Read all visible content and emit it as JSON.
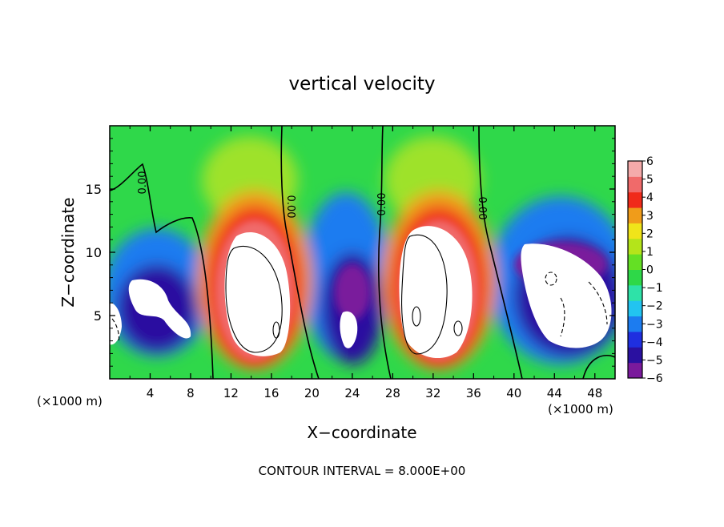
{
  "chart_data": {
    "type": "heatmap",
    "title": "vertical velocity",
    "xlabel": "X−coordinate",
    "ylabel": "Z−coordinate",
    "x_unit_left": "(×1000 m)",
    "x_unit_right": "(×1000 m)",
    "footer": "CONTOUR INTERVAL = 8.000E+00",
    "xlim": [
      0,
      50
    ],
    "ylim": [
      0,
      20
    ],
    "x_ticks": [
      {
        "value": 4,
        "label": "4"
      },
      {
        "value": 8,
        "label": "8"
      },
      {
        "value": 12,
        "label": "12"
      },
      {
        "value": 16,
        "label": "16"
      },
      {
        "value": 20,
        "label": "20"
      },
      {
        "value": 24,
        "label": "24"
      },
      {
        "value": 28,
        "label": "28"
      },
      {
        "value": 32,
        "label": "32"
      },
      {
        "value": 36,
        "label": "36"
      },
      {
        "value": 40,
        "label": "40"
      },
      {
        "value": 44,
        "label": "44"
      },
      {
        "value": 48,
        "label": "48"
      }
    ],
    "y_ticks": [
      {
        "value": 5,
        "label": "5"
      },
      {
        "value": 10,
        "label": "10"
      },
      {
        "value": 15,
        "label": "15"
      }
    ],
    "colorbar": {
      "range": [
        -6,
        6
      ],
      "ticks": [
        {
          "value": 6,
          "label": "6"
        },
        {
          "value": 5,
          "label": "5"
        },
        {
          "value": 4,
          "label": "4"
        },
        {
          "value": 3,
          "label": "3"
        },
        {
          "value": 2,
          "label": "2"
        },
        {
          "value": 1,
          "label": "1"
        },
        {
          "value": 0,
          "label": "0"
        },
        {
          "value": -1,
          "label": "−1"
        },
        {
          "value": -2,
          "label": "−2"
        },
        {
          "value": -3,
          "label": "−3"
        },
        {
          "value": -4,
          "label": "−4"
        },
        {
          "value": -5,
          "label": "−5"
        },
        {
          "value": -6,
          "label": "−6"
        }
      ],
      "colors": [
        "#7a1a9c",
        "#2a10a0",
        "#1f2fe0",
        "#1c7cf0",
        "#22c4f0",
        "#2ee2a8",
        "#2ed848",
        "#64e024",
        "#b4e41a",
        "#f0e41a",
        "#f09c1a",
        "#f02a1a",
        "#f06a6a",
        "#f4aaaa"
      ]
    },
    "contour_labels": [
      "0.00",
      "0.00",
      "0.00",
      "0.00"
    ],
    "features": [
      {
        "kind": "updraft",
        "x": 14.5,
        "z": 7.2,
        "peak": 6
      },
      {
        "kind": "updraft",
        "x": 32.0,
        "z": 7.4,
        "peak": 6
      },
      {
        "kind": "downdraft",
        "x": 5.5,
        "z": 4.5,
        "peak": -6
      },
      {
        "kind": "downdraft",
        "x": 23.5,
        "z": 5.5,
        "peak": -6
      },
      {
        "kind": "downdraft",
        "x": 45.5,
        "z": 5.5,
        "peak": -6
      }
    ]
  }
}
